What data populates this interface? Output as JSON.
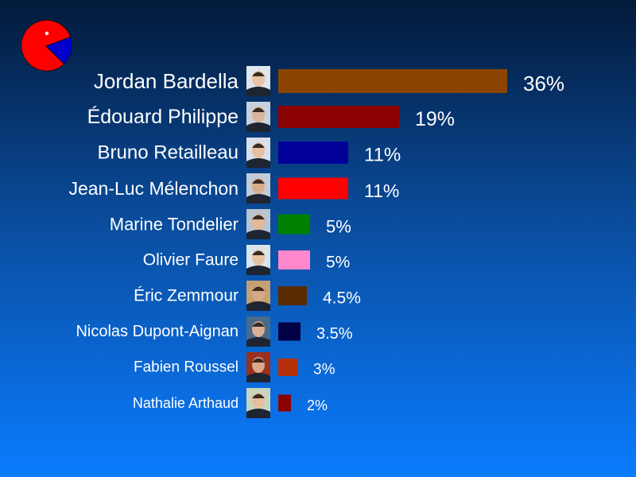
{
  "chart_data": {
    "type": "bar",
    "orientation": "horizontal",
    "categories": [
      "Jordan Bardella",
      "Édouard Philippe",
      "Bruno Retailleau",
      "Jean-Luc Mélenchon",
      "Marine Tondelier",
      "Olivier Faure",
      "Éric Zemmour",
      "Nicolas Dupont-Aignan",
      "Fabien Roussel",
      "Nathalie Arthaud"
    ],
    "values": [
      36,
      19,
      11,
      11,
      5,
      5,
      4.5,
      3.5,
      3,
      2
    ],
    "value_labels": [
      "36%",
      "19%",
      "11%",
      "11%",
      "5%",
      "5%",
      "4.5%",
      "3.5%",
      "3%",
      "2%"
    ],
    "colors": [
      "#8b4500",
      "#8b0000",
      "#000099",
      "#ff0000",
      "#008000",
      "#ff88cc",
      "#5a2b00",
      "#000044",
      "#b5300a",
      "#8b0000"
    ],
    "unit": "%",
    "grid": false,
    "legend": "none"
  },
  "logo": {
    "icon": "pie-chart-icon",
    "colors": [
      "#ff0000",
      "#0000cc"
    ]
  }
}
